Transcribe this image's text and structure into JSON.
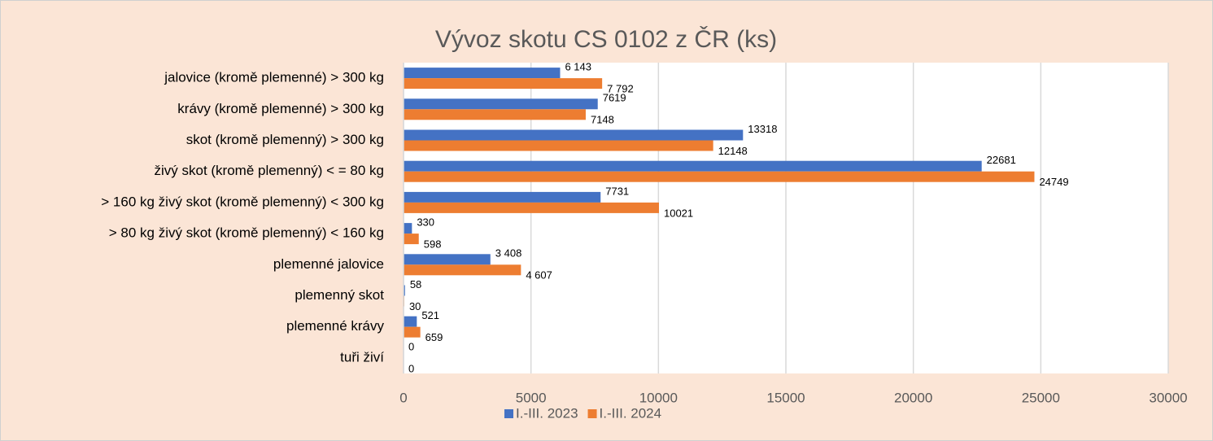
{
  "chart_data": {
    "type": "hbar",
    "title": "Vývoz skotu CS 0102 z ČR (ks)",
    "categories": [
      "jalovice (kromě plemenné) > 300 kg",
      "krávy (kromě plemenné) > 300 kg",
      "skot (kromě plemenný) > 300 kg",
      "živý skot (kromě plemenný) < = 80 kg",
      "> 160 kg živý skot (kromě plemenný) < 300 kg",
      "> 80 kg živý skot (kromě plemenný) < 160 kg",
      "plemenné jalovice",
      "plemenný skot",
      "plemenné krávy",
      "tuři živí"
    ],
    "series": [
      {
        "name": "I.-III. 2023",
        "color": "#4472c4",
        "values": [
          6143,
          7619,
          13318,
          22681,
          7731,
          330,
          3408,
          58,
          521,
          0
        ],
        "value_labels": [
          "6 143",
          "7619",
          "13318",
          "22681",
          "7731",
          "330",
          "3 408",
          "58",
          "521",
          "0"
        ]
      },
      {
        "name": "I.-III. 2024",
        "color": "#ed7d31",
        "values": [
          7792,
          7148,
          12148,
          24749,
          10021,
          598,
          4607,
          30,
          659,
          0
        ],
        "value_labels": [
          "7 792",
          "7148",
          "12148",
          "24749",
          "10021",
          "598",
          "4 607",
          "30",
          "659",
          "0"
        ]
      }
    ],
    "xlim": [
      0,
      30000
    ],
    "xticks": [
      0,
      5000,
      10000,
      15000,
      20000,
      25000,
      30000
    ],
    "grid": true,
    "legend": "bottom"
  }
}
